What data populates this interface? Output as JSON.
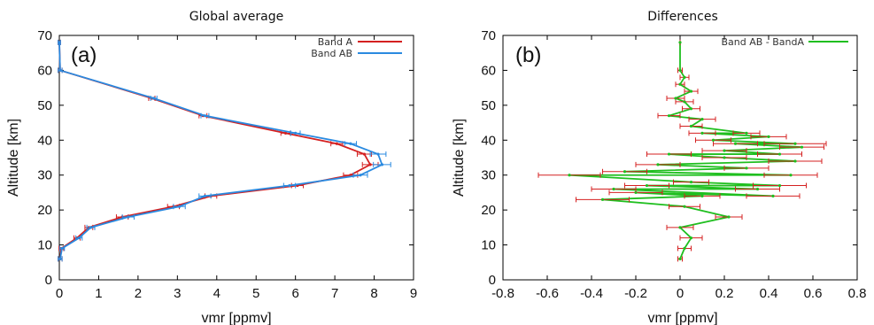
{
  "chart_data": [
    {
      "type": "line",
      "title": "Global average",
      "panel_label": "(a)",
      "xlabel": "vmr [ppmv]",
      "ylabel": "Altitude [km]",
      "xlim": [
        0,
        9
      ],
      "ylim": [
        0,
        70
      ],
      "x_ticks": [
        0,
        1,
        2,
        3,
        4,
        5,
        6,
        7,
        8,
        9
      ],
      "y_ticks": [
        0,
        10,
        20,
        30,
        40,
        50,
        60,
        70
      ],
      "grid": false,
      "legend_position": "top-right",
      "series": [
        {
          "name": "Band A",
          "color": "#d42020",
          "points": [
            [
              0.02,
              6
            ],
            [
              0.05,
              9
            ],
            [
              0.45,
              12
            ],
            [
              0.75,
              15
            ],
            [
              1.6,
              18
            ],
            [
              2.9,
              21
            ],
            [
              3.85,
              24
            ],
            [
              6.05,
              27
            ],
            [
              7.4,
              30
            ],
            [
              7.9,
              33
            ],
            [
              7.75,
              36
            ],
            [
              7.05,
              39
            ],
            [
              5.75,
              42
            ],
            [
              3.65,
              47
            ],
            [
              2.35,
              52
            ],
            [
              0.02,
              60
            ],
            [
              0.0,
              68
            ]
          ],
          "errors": [
            0.05,
            0.06,
            0.08,
            0.1,
            0.15,
            0.15,
            0.15,
            0.15,
            0.18,
            0.2,
            0.18,
            0.15,
            0.12,
            0.1,
            0.08,
            0.05,
            0.03
          ]
        },
        {
          "name": "Band AB",
          "color": "#2a8ae0",
          "points": [
            [
              0.02,
              6
            ],
            [
              0.07,
              9
            ],
            [
              0.5,
              12
            ],
            [
              0.8,
              15
            ],
            [
              1.75,
              18
            ],
            [
              3.05,
              21
            ],
            [
              3.7,
              24
            ],
            [
              5.85,
              27
            ],
            [
              7.65,
              30
            ],
            [
              8.2,
              33
            ],
            [
              8.1,
              36
            ],
            [
              7.4,
              39
            ],
            [
              6.0,
              42
            ],
            [
              3.7,
              47
            ],
            [
              2.4,
              52
            ],
            [
              0.02,
              60
            ],
            [
              0.0,
              68
            ]
          ],
          "errors": [
            0.05,
            0.06,
            0.08,
            0.1,
            0.15,
            0.15,
            0.15,
            0.15,
            0.18,
            0.22,
            0.2,
            0.15,
            0.12,
            0.1,
            0.08,
            0.05,
            0.03
          ]
        }
      ]
    },
    {
      "type": "line",
      "title": "Differences",
      "panel_label": "(b)",
      "xlabel": "vmr [ppmv]",
      "ylabel": "Altitude [km]",
      "xlim": [
        -0.8,
        0.8
      ],
      "ylim": [
        0,
        70
      ],
      "x_ticks": [
        -0.8,
        -0.6,
        -0.4,
        -0.2,
        0,
        0.2,
        0.4,
        0.6,
        0.8
      ],
      "y_ticks": [
        0,
        10,
        20,
        30,
        40,
        50,
        60,
        70
      ],
      "grid": false,
      "legend_position": "top-right",
      "series": [
        {
          "name": "Band AB - BandA",
          "color": "#1fbf1f",
          "error_color": "#d42020",
          "points": [
            [
              0,
              6
            ],
            [
              0.02,
              9
            ],
            [
              0.05,
              12
            ],
            [
              0.0,
              15
            ],
            [
              0.22,
              18
            ],
            [
              0.02,
              21
            ],
            [
              -0.35,
              23
            ],
            [
              0.1,
              24
            ],
            [
              -0.2,
              25
            ],
            [
              0.42,
              24
            ],
            [
              -0.3,
              26
            ],
            [
              0.35,
              26
            ],
            [
              -0.15,
              27
            ],
            [
              0.45,
              27
            ],
            [
              0.05,
              28
            ],
            [
              -0.5,
              30
            ],
            [
              0.5,
              30
            ],
            [
              -0.25,
              31
            ],
            [
              0.3,
              32
            ],
            [
              -0.1,
              33
            ],
            [
              0.52,
              34
            ],
            [
              0.2,
              35
            ],
            [
              -0.05,
              36
            ],
            [
              0.45,
              36
            ],
            [
              0.2,
              37
            ],
            [
              0.55,
              38
            ],
            [
              0.25,
              39
            ],
            [
              0.52,
              39
            ],
            [
              0.15,
              40
            ],
            [
              0.4,
              41
            ],
            [
              0.1,
              42
            ],
            [
              0.3,
              42
            ],
            [
              0.05,
              44
            ],
            [
              0.1,
              46
            ],
            [
              -0.05,
              47
            ],
            [
              0.05,
              49
            ],
            [
              0.02,
              51
            ],
            [
              -0.02,
              52
            ],
            [
              0.05,
              54
            ],
            [
              0,
              56
            ],
            [
              0.02,
              58
            ],
            [
              0,
              60
            ],
            [
              0,
              68
            ]
          ],
          "errors": [
            0.01,
            0.03,
            0.05,
            0.06,
            0.06,
            0.07,
            0.12,
            0.08,
            0.12,
            0.12,
            0.1,
            0.1,
            0.1,
            0.12,
            0.08,
            0.14,
            0.12,
            0.1,
            0.1,
            0.1,
            0.12,
            0.1,
            0.1,
            0.1,
            0.1,
            0.1,
            0.1,
            0.14,
            0.08,
            0.08,
            0.06,
            0.06,
            0.05,
            0.06,
            0.05,
            0.04,
            0.04,
            0.04,
            0.03,
            0.02,
            0.02,
            0.01,
            0.0
          ]
        }
      ]
    }
  ]
}
